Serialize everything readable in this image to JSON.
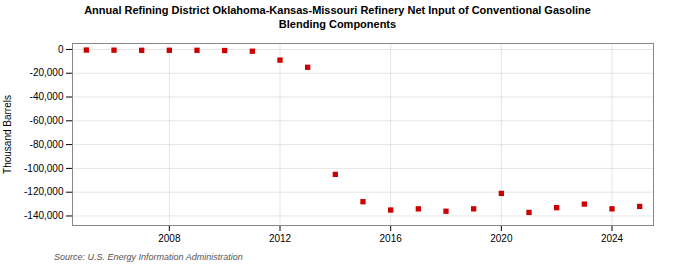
{
  "chart_data": {
    "type": "scatter",
    "title": "Annual Refining District Oklahoma-Kansas-Missouri Refinery Net Input of Conventional Gasoline",
    "subtitle": "Blending Components",
    "ylabel": "Thousand Barrels",
    "source": "Source: U.S. Energy Information Administration",
    "x": [
      2005,
      2006,
      2007,
      2008,
      2009,
      2010,
      2011,
      2012,
      2013,
      2014,
      2015,
      2016,
      2017,
      2018,
      2019,
      2020,
      2021,
      2022,
      2023,
      2024,
      2025
    ],
    "values": [
      -500,
      -600,
      -700,
      -700,
      -700,
      -900,
      -1500,
      -9000,
      -15000,
      -105000,
      -128000,
      -135000,
      -134000,
      -136000,
      -134000,
      -121000,
      -137000,
      -133000,
      -130000,
      -134000,
      -132000
    ],
    "color": "#cc0000",
    "marker": "square",
    "xlim": [
      2004.5,
      2025.5
    ],
    "xticks": [
      2008,
      2012,
      2016,
      2020,
      2024
    ],
    "ylim": [
      -148000,
      5000
    ],
    "yticks": [
      0,
      {
        "value": -20000,
        "label": "-20,000"
      },
      {
        "value": -40000,
        "label": "-40,000"
      },
      {
        "value": -60000,
        "label": "-60,000"
      },
      {
        "value": -80000,
        "label": "-80,000"
      },
      {
        "value": -100000,
        "label": "-100,000"
      },
      {
        "value": -120000,
        "label": "-120,000"
      },
      {
        "value": -140000,
        "label": "-140,000"
      }
    ],
    "grid": true
  }
}
